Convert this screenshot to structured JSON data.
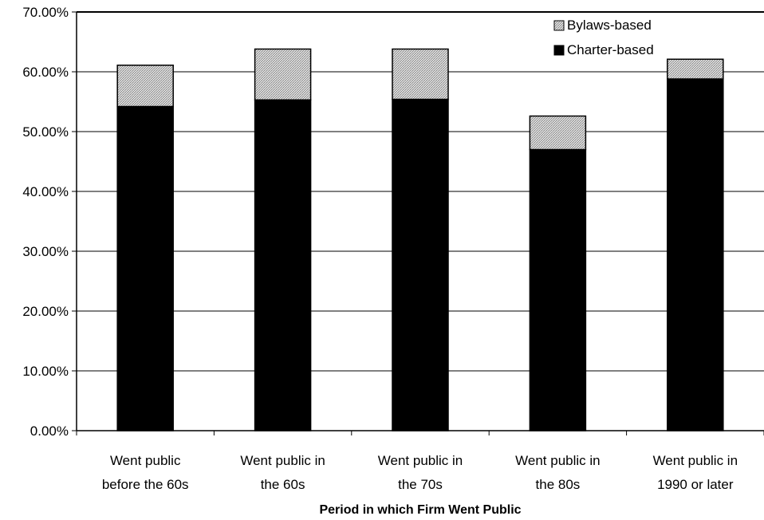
{
  "chart_data": {
    "type": "bar",
    "stacked": true,
    "categories": [
      [
        "Went public",
        "before the 60s"
      ],
      [
        "Went public in",
        "the 60s"
      ],
      [
        "Went public in",
        "the 70s"
      ],
      [
        "Went public in",
        "the 80s"
      ],
      [
        "Went public in",
        "1990 or later"
      ]
    ],
    "series": [
      {
        "name": "Charter-based",
        "values": [
          54.2,
          55.3,
          55.4,
          47.0,
          58.8
        ],
        "color": "#000000",
        "pattern": "solid"
      },
      {
        "name": "Bylaws-based",
        "values": [
          6.9,
          8.5,
          8.4,
          5.6,
          3.3
        ],
        "color": "#c8c8c8",
        "pattern": "hatched"
      }
    ],
    "title": "",
    "xlabel": "Period in which Firm Went Public",
    "ylabel": "",
    "ylim": [
      0,
      70
    ],
    "yticks": [
      "0.00%",
      "10.00%",
      "20.00%",
      "30.00%",
      "40.00%",
      "50.00%",
      "60.00%",
      "70.00%"
    ],
    "grid": "horizontal",
    "legend_position": "top-right",
    "legend_order": [
      "Bylaws-based",
      "Charter-based"
    ]
  }
}
